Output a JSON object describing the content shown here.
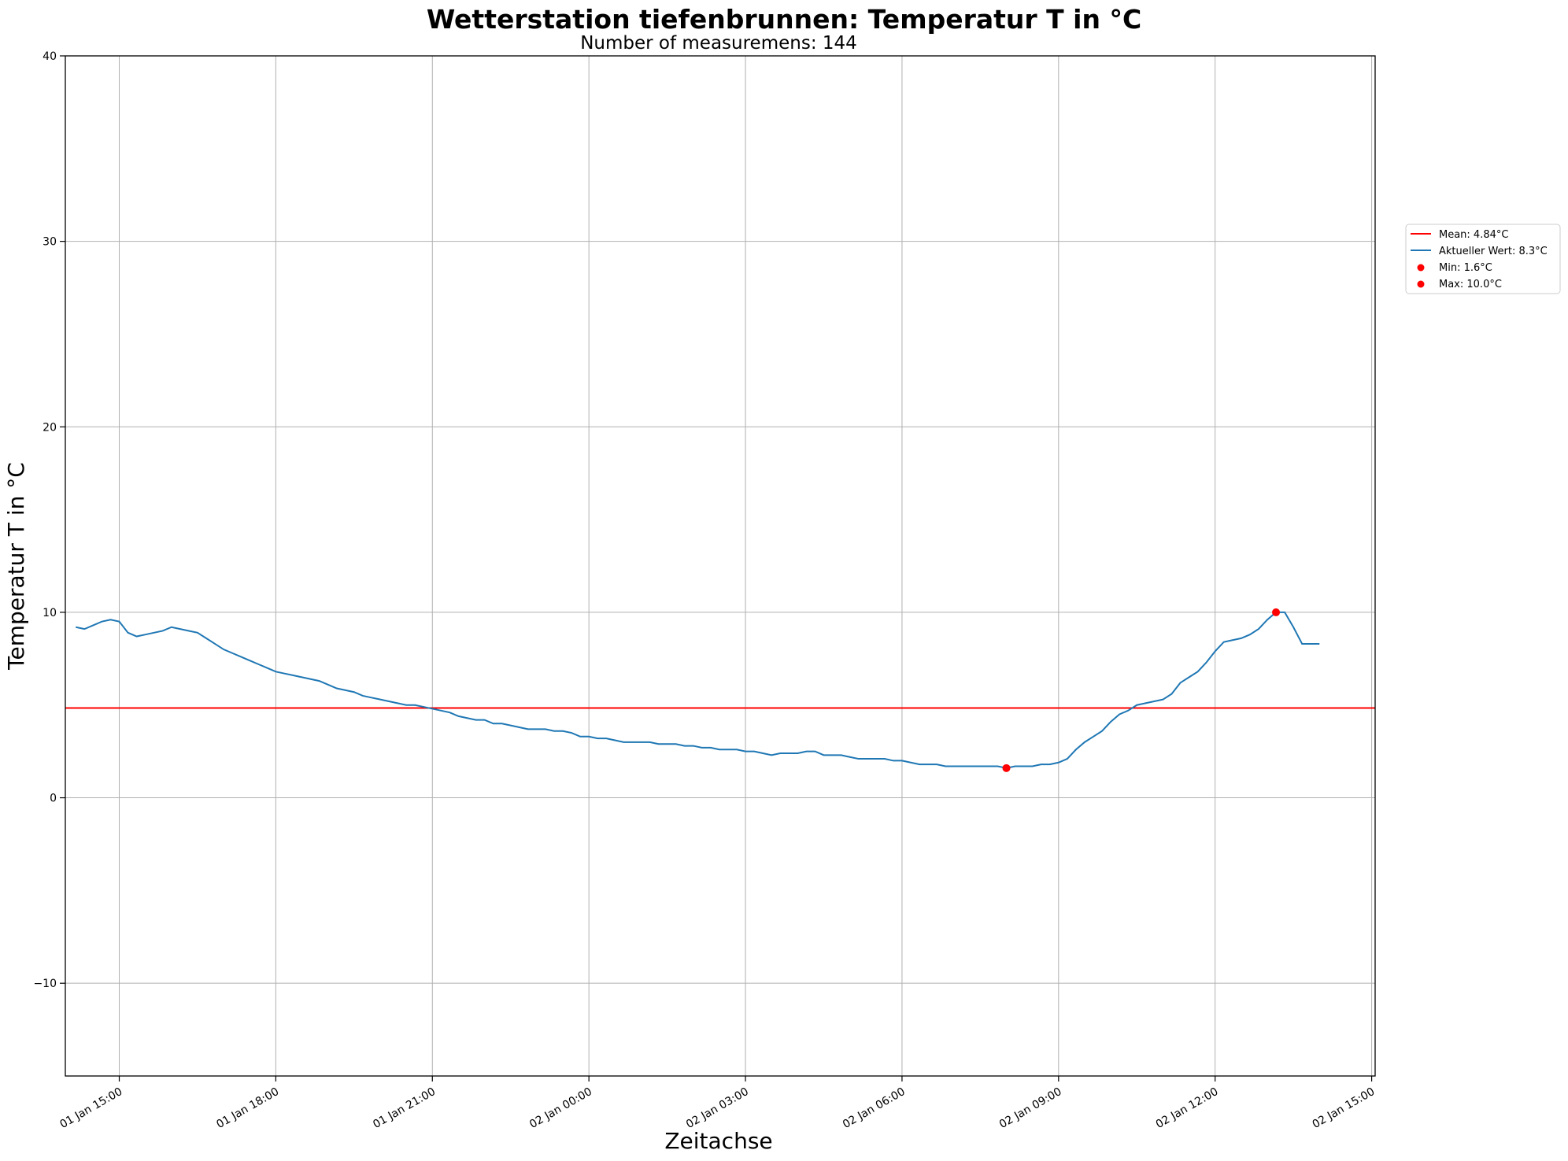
{
  "chart_data": {
    "type": "line",
    "title": "Wetterstation tiefenbrunnen: Temperatur T in °C",
    "subtitle": "Number of measuremens: 144",
    "xlabel": "Zeitachse",
    "ylabel": "Temperatur T in °C",
    "ylim": [
      -15,
      40
    ],
    "xlim": [
      "2024-01-01 13:58",
      "2024-01-02 15:04"
    ],
    "grid": true,
    "legend_position": "right-outside",
    "y_ticks": [
      {
        "value": -10,
        "label": "−10"
      },
      {
        "value": 0,
        "label": "0"
      },
      {
        "value": 10,
        "label": "10"
      },
      {
        "value": 20,
        "label": "20"
      },
      {
        "value": 30,
        "label": "30"
      },
      {
        "value": 40,
        "label": "40"
      }
    ],
    "x_ticks": [
      {
        "value": "2024-01-01 15:00",
        "label": "01 Jan 15:00"
      },
      {
        "value": "2024-01-01 18:00",
        "label": "01 Jan 18:00"
      },
      {
        "value": "2024-01-01 21:00",
        "label": "01 Jan 21:00"
      },
      {
        "value": "2024-01-02 00:00",
        "label": "02 Jan 00:00"
      },
      {
        "value": "2024-01-02 03:00",
        "label": "02 Jan 03:00"
      },
      {
        "value": "2024-01-02 06:00",
        "label": "02 Jan 06:00"
      },
      {
        "value": "2024-01-02 09:00",
        "label": "02 Jan 09:00"
      },
      {
        "value": "2024-01-02 12:00",
        "label": "02 Jan 12:00"
      },
      {
        "value": "2024-01-02 15:00",
        "label": "02 Jan 15:00"
      }
    ],
    "series": [
      {
        "name": "Aktueller Wert: 8.3°C",
        "color": "#1f77b4",
        "points": [
          [
            "2024-01-01 14:10",
            9.2
          ],
          [
            "2024-01-01 14:20",
            9.1
          ],
          [
            "2024-01-01 14:30",
            9.3
          ],
          [
            "2024-01-01 14:40",
            9.5
          ],
          [
            "2024-01-01 14:50",
            9.6
          ],
          [
            "2024-01-01 15:00",
            9.5
          ],
          [
            "2024-01-01 15:10",
            8.9
          ],
          [
            "2024-01-01 15:20",
            8.7
          ],
          [
            "2024-01-01 15:30",
            8.8
          ],
          [
            "2024-01-01 15:40",
            8.9
          ],
          [
            "2024-01-01 15:50",
            9.0
          ],
          [
            "2024-01-01 16:00",
            9.2
          ],
          [
            "2024-01-01 16:10",
            9.1
          ],
          [
            "2024-01-01 16:20",
            9.0
          ],
          [
            "2024-01-01 16:30",
            8.9
          ],
          [
            "2024-01-01 16:40",
            8.6
          ],
          [
            "2024-01-01 16:50",
            8.3
          ],
          [
            "2024-01-01 17:00",
            8.0
          ],
          [
            "2024-01-01 17:10",
            7.8
          ],
          [
            "2024-01-01 17:20",
            7.6
          ],
          [
            "2024-01-01 17:30",
            7.4
          ],
          [
            "2024-01-01 17:40",
            7.2
          ],
          [
            "2024-01-01 17:50",
            7.0
          ],
          [
            "2024-01-01 18:00",
            6.8
          ],
          [
            "2024-01-01 18:10",
            6.7
          ],
          [
            "2024-01-01 18:20",
            6.6
          ],
          [
            "2024-01-01 18:30",
            6.5
          ],
          [
            "2024-01-01 18:40",
            6.4
          ],
          [
            "2024-01-01 18:50",
            6.3
          ],
          [
            "2024-01-01 19:00",
            6.1
          ],
          [
            "2024-01-01 19:10",
            5.9
          ],
          [
            "2024-01-01 19:20",
            5.8
          ],
          [
            "2024-01-01 19:30",
            5.7
          ],
          [
            "2024-01-01 19:40",
            5.5
          ],
          [
            "2024-01-01 19:50",
            5.4
          ],
          [
            "2024-01-01 20:00",
            5.3
          ],
          [
            "2024-01-01 20:10",
            5.2
          ],
          [
            "2024-01-01 20:20",
            5.1
          ],
          [
            "2024-01-01 20:30",
            5.0
          ],
          [
            "2024-01-01 20:40",
            5.0
          ],
          [
            "2024-01-01 20:50",
            4.9
          ],
          [
            "2024-01-01 21:00",
            4.8
          ],
          [
            "2024-01-01 21:10",
            4.7
          ],
          [
            "2024-01-01 21:20",
            4.6
          ],
          [
            "2024-01-01 21:30",
            4.4
          ],
          [
            "2024-01-01 21:40",
            4.3
          ],
          [
            "2024-01-01 21:50",
            4.2
          ],
          [
            "2024-01-01 22:00",
            4.2
          ],
          [
            "2024-01-01 22:10",
            4.0
          ],
          [
            "2024-01-01 22:20",
            4.0
          ],
          [
            "2024-01-01 22:30",
            3.9
          ],
          [
            "2024-01-01 22:40",
            3.8
          ],
          [
            "2024-01-01 22:50",
            3.7
          ],
          [
            "2024-01-01 23:00",
            3.7
          ],
          [
            "2024-01-01 23:10",
            3.7
          ],
          [
            "2024-01-01 23:20",
            3.6
          ],
          [
            "2024-01-01 23:30",
            3.6
          ],
          [
            "2024-01-01 23:40",
            3.5
          ],
          [
            "2024-01-01 23:50",
            3.3
          ],
          [
            "2024-01-02 00:00",
            3.3
          ],
          [
            "2024-01-02 00:10",
            3.2
          ],
          [
            "2024-01-02 00:20",
            3.2
          ],
          [
            "2024-01-02 00:30",
            3.1
          ],
          [
            "2024-01-02 00:40",
            3.0
          ],
          [
            "2024-01-02 00:50",
            3.0
          ],
          [
            "2024-01-02 01:00",
            3.0
          ],
          [
            "2024-01-02 01:10",
            3.0
          ],
          [
            "2024-01-02 01:20",
            2.9
          ],
          [
            "2024-01-02 01:30",
            2.9
          ],
          [
            "2024-01-02 01:40",
            2.9
          ],
          [
            "2024-01-02 01:50",
            2.8
          ],
          [
            "2024-01-02 02:00",
            2.8
          ],
          [
            "2024-01-02 02:10",
            2.7
          ],
          [
            "2024-01-02 02:20",
            2.7
          ],
          [
            "2024-01-02 02:30",
            2.6
          ],
          [
            "2024-01-02 02:40",
            2.6
          ],
          [
            "2024-01-02 02:50",
            2.6
          ],
          [
            "2024-01-02 03:00",
            2.5
          ],
          [
            "2024-01-02 03:10",
            2.5
          ],
          [
            "2024-01-02 03:20",
            2.4
          ],
          [
            "2024-01-02 03:30",
            2.3
          ],
          [
            "2024-01-02 03:40",
            2.4
          ],
          [
            "2024-01-02 03:50",
            2.4
          ],
          [
            "2024-01-02 04:00",
            2.4
          ],
          [
            "2024-01-02 04:10",
            2.5
          ],
          [
            "2024-01-02 04:20",
            2.5
          ],
          [
            "2024-01-02 04:30",
            2.3
          ],
          [
            "2024-01-02 04:40",
            2.3
          ],
          [
            "2024-01-02 04:50",
            2.3
          ],
          [
            "2024-01-02 05:00",
            2.2
          ],
          [
            "2024-01-02 05:10",
            2.1
          ],
          [
            "2024-01-02 05:20",
            2.1
          ],
          [
            "2024-01-02 05:30",
            2.1
          ],
          [
            "2024-01-02 05:40",
            2.1
          ],
          [
            "2024-01-02 05:50",
            2.0
          ],
          [
            "2024-01-02 06:00",
            2.0
          ],
          [
            "2024-01-02 06:10",
            1.9
          ],
          [
            "2024-01-02 06:20",
            1.8
          ],
          [
            "2024-01-02 06:30",
            1.8
          ],
          [
            "2024-01-02 06:40",
            1.8
          ],
          [
            "2024-01-02 06:50",
            1.7
          ],
          [
            "2024-01-02 07:00",
            1.7
          ],
          [
            "2024-01-02 07:10",
            1.7
          ],
          [
            "2024-01-02 07:20",
            1.7
          ],
          [
            "2024-01-02 07:30",
            1.7
          ],
          [
            "2024-01-02 07:40",
            1.7
          ],
          [
            "2024-01-02 07:50",
            1.7
          ],
          [
            "2024-01-02 08:00",
            1.6
          ],
          [
            "2024-01-02 08:10",
            1.7
          ],
          [
            "2024-01-02 08:20",
            1.7
          ],
          [
            "2024-01-02 08:30",
            1.7
          ],
          [
            "2024-01-02 08:40",
            1.8
          ],
          [
            "2024-01-02 08:50",
            1.8
          ],
          [
            "2024-01-02 09:00",
            1.9
          ],
          [
            "2024-01-02 09:10",
            2.1
          ],
          [
            "2024-01-02 09:20",
            2.6
          ],
          [
            "2024-01-02 09:30",
            3.0
          ],
          [
            "2024-01-02 09:40",
            3.3
          ],
          [
            "2024-01-02 09:50",
            3.6
          ],
          [
            "2024-01-02 10:00",
            4.1
          ],
          [
            "2024-01-02 10:10",
            4.5
          ],
          [
            "2024-01-02 10:20",
            4.7
          ],
          [
            "2024-01-02 10:30",
            5.0
          ],
          [
            "2024-01-02 10:40",
            5.1
          ],
          [
            "2024-01-02 10:50",
            5.2
          ],
          [
            "2024-01-02 11:00",
            5.3
          ],
          [
            "2024-01-02 11:10",
            5.6
          ],
          [
            "2024-01-02 11:20",
            6.2
          ],
          [
            "2024-01-02 11:30",
            6.5
          ],
          [
            "2024-01-02 11:40",
            6.8
          ],
          [
            "2024-01-02 11:50",
            7.3
          ],
          [
            "2024-01-02 12:00",
            7.9
          ],
          [
            "2024-01-02 12:10",
            8.4
          ],
          [
            "2024-01-02 12:20",
            8.5
          ],
          [
            "2024-01-02 12:30",
            8.6
          ],
          [
            "2024-01-02 12:40",
            8.8
          ],
          [
            "2024-01-02 12:50",
            9.1
          ],
          [
            "2024-01-02 13:00",
            9.6
          ],
          [
            "2024-01-02 13:10",
            10.0
          ],
          [
            "2024-01-02 13:20",
            10.0
          ],
          [
            "2024-01-02 13:30",
            9.2
          ],
          [
            "2024-01-02 13:40",
            8.3
          ],
          [
            "2024-01-02 13:50",
            8.3
          ],
          [
            "2024-01-02 14:00",
            8.3
          ]
        ]
      }
    ],
    "mean_line": {
      "name": "Mean: 4.84°C",
      "value": 4.84,
      "color": "#ff0000"
    },
    "markers": [
      {
        "name": "Min: 1.6°C",
        "x": "2024-01-02 08:00",
        "y": 1.6,
        "color": "#ff0000"
      },
      {
        "name": "Max: 10.0°C",
        "x": "2024-01-02 13:10",
        "y": 10.0,
        "color": "#ff0000"
      }
    ]
  }
}
